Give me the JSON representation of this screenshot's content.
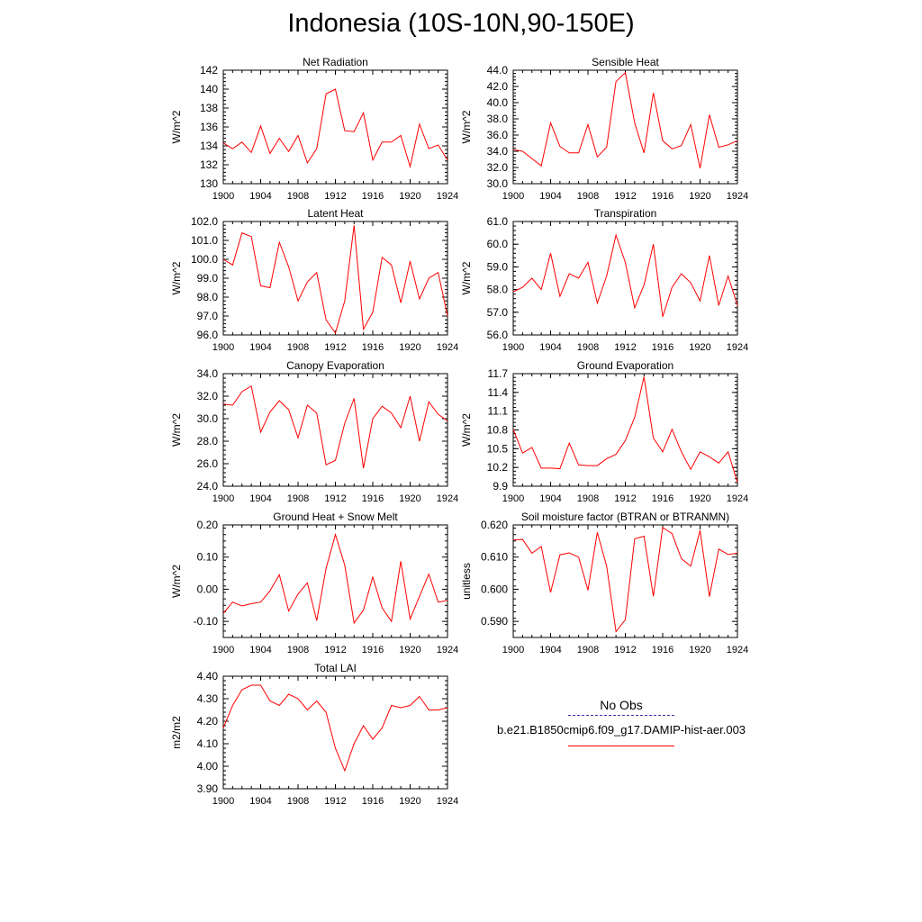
{
  "title": "Indonesia (10S-10N,90-150E)",
  "legend": {
    "obs_label": "No Obs",
    "model_label": "b.e21.B1850cmip6.f09_g17.DAMIP-hist-aer.003",
    "obs_color": "#3333aa",
    "model_color": "#ff0000"
  },
  "chart_data": [
    {
      "type": "line",
      "title": "Net Radiation",
      "ylabel": "W/m^2",
      "x": [
        1900,
        1901,
        1902,
        1903,
        1904,
        1905,
        1906,
        1907,
        1908,
        1909,
        1910,
        1911,
        1912,
        1913,
        1914,
        1915,
        1916,
        1917,
        1918,
        1919,
        1920,
        1921,
        1922,
        1923,
        1924
      ],
      "xlim": [
        1900,
        1924
      ],
      "xticks": [
        "1900",
        "1904",
        "1908",
        "1912",
        "1916",
        "1920",
        "1924"
      ],
      "ylim": [
        130,
        142
      ],
      "yticks": [
        "130",
        "132",
        "134",
        "136",
        "138",
        "140",
        "142"
      ],
      "series": [
        {
          "values": [
            134.3,
            133.7,
            134.4,
            133.3,
            136.1,
            133.2,
            134.8,
            133.4,
            135.1,
            132.2,
            133.7,
            139.5,
            140.0,
            135.6,
            135.5,
            137.5,
            132.5,
            134.4,
            134.4,
            135.1,
            131.8,
            136.3,
            133.7,
            134.1,
            132.5
          ]
        }
      ]
    },
    {
      "type": "line",
      "title": "Sensible Heat",
      "ylabel": "W/m^2",
      "x": [
        1900,
        1901,
        1902,
        1903,
        1904,
        1905,
        1906,
        1907,
        1908,
        1909,
        1910,
        1911,
        1912,
        1913,
        1914,
        1915,
        1916,
        1917,
        1918,
        1919,
        1920,
        1921,
        1922,
        1923,
        1924
      ],
      "xlim": [
        1900,
        1924
      ],
      "xticks": [
        "1900",
        "1904",
        "1908",
        "1912",
        "1916",
        "1920",
        "1924"
      ],
      "ylim": [
        30.0,
        44.0
      ],
      "yticks": [
        "30.0",
        "32.0",
        "34.0",
        "36.0",
        "38.0",
        "40.0",
        "42.0",
        "44.0"
      ],
      "series": [
        {
          "values": [
            34.2,
            34.0,
            33.1,
            32.2,
            37.5,
            34.6,
            33.8,
            33.8,
            37.3,
            33.3,
            34.5,
            42.6,
            43.7,
            37.5,
            33.8,
            41.2,
            35.3,
            34.3,
            34.7,
            37.3,
            31.9,
            38.5,
            34.5,
            34.8,
            35.3
          ]
        }
      ]
    },
    {
      "type": "line",
      "title": "Latent Heat",
      "ylabel": "W/m^2",
      "x": [
        1900,
        1901,
        1902,
        1903,
        1904,
        1905,
        1906,
        1907,
        1908,
        1909,
        1910,
        1911,
        1912,
        1913,
        1914,
        1915,
        1916,
        1917,
        1918,
        1919,
        1920,
        1921,
        1922,
        1923,
        1924
      ],
      "xlim": [
        1900,
        1924
      ],
      "xticks": [
        "1900",
        "1904",
        "1908",
        "1912",
        "1916",
        "1920",
        "1924"
      ],
      "ylim": [
        96.0,
        102.0
      ],
      "yticks": [
        "96.0",
        "97.0",
        "98.0",
        "99.0",
        "100.0",
        "101.0",
        "102.0"
      ],
      "series": [
        {
          "values": [
            100.0,
            99.7,
            101.4,
            101.2,
            98.6,
            98.5,
            100.9,
            99.6,
            97.8,
            98.8,
            99.3,
            96.8,
            96.1,
            97.8,
            101.8,
            96.3,
            97.2,
            100.1,
            99.7,
            97.7,
            99.9,
            97.9,
            99.0,
            99.3,
            97.0
          ]
        }
      ]
    },
    {
      "type": "line",
      "title": "Transpiration",
      "ylabel": "W/m^2",
      "x": [
        1900,
        1901,
        1902,
        1903,
        1904,
        1905,
        1906,
        1907,
        1908,
        1909,
        1910,
        1911,
        1912,
        1913,
        1914,
        1915,
        1916,
        1917,
        1918,
        1919,
        1920,
        1921,
        1922,
        1923,
        1924
      ],
      "xlim": [
        1900,
        1924
      ],
      "xticks": [
        "1900",
        "1904",
        "1908",
        "1912",
        "1916",
        "1920",
        "1924"
      ],
      "ylim": [
        56.0,
        61.0
      ],
      "yticks": [
        "56.0",
        "57.0",
        "58.0",
        "59.0",
        "60.0",
        "61.0"
      ],
      "series": [
        {
          "values": [
            57.9,
            58.1,
            58.5,
            58.0,
            59.6,
            57.7,
            58.7,
            58.5,
            59.2,
            57.4,
            58.6,
            60.4,
            59.2,
            57.2,
            58.2,
            60.0,
            56.8,
            58.1,
            58.7,
            58.3,
            57.5,
            59.5,
            57.3,
            58.6,
            57.3
          ]
        }
      ]
    },
    {
      "type": "line",
      "title": "Canopy Evaporation",
      "ylabel": "W/m^2",
      "x": [
        1900,
        1901,
        1902,
        1903,
        1904,
        1905,
        1906,
        1907,
        1908,
        1909,
        1910,
        1911,
        1912,
        1913,
        1914,
        1915,
        1916,
        1917,
        1918,
        1919,
        1920,
        1921,
        1922,
        1923,
        1924
      ],
      "xlim": [
        1900,
        1924
      ],
      "xticks": [
        "1900",
        "1904",
        "1908",
        "1912",
        "1916",
        "1920",
        "1924"
      ],
      "ylim": [
        24.0,
        34.0
      ],
      "yticks": [
        "24.0",
        "26.0",
        "28.0",
        "30.0",
        "32.0",
        "34.0"
      ],
      "series": [
        {
          "values": [
            31.3,
            31.2,
            32.4,
            32.9,
            28.8,
            30.6,
            31.6,
            30.8,
            28.3,
            31.2,
            30.5,
            25.9,
            26.3,
            29.6,
            31.8,
            25.6,
            30.0,
            31.1,
            30.5,
            29.2,
            32.0,
            28.0,
            31.5,
            30.4,
            29.8
          ]
        }
      ]
    },
    {
      "type": "line",
      "title": "Ground Evaporation",
      "ylabel": "W/m^2",
      "x": [
        1900,
        1901,
        1902,
        1903,
        1904,
        1905,
        1906,
        1907,
        1908,
        1909,
        1910,
        1911,
        1912,
        1913,
        1914,
        1915,
        1916,
        1917,
        1918,
        1919,
        1920,
        1921,
        1922,
        1923,
        1924
      ],
      "xlim": [
        1900,
        1924
      ],
      "xticks": [
        "1900",
        "1904",
        "1908",
        "1912",
        "1916",
        "1920",
        "1924"
      ],
      "ylim": [
        9.9,
        11.7
      ],
      "yticks": [
        "9.9",
        "10.2",
        "10.5",
        "10.8",
        "11.1",
        "11.4",
        "11.7"
      ],
      "series": [
        {
          "values": [
            10.81,
            10.43,
            10.52,
            10.19,
            10.19,
            10.18,
            10.59,
            10.24,
            10.23,
            10.23,
            10.34,
            10.41,
            10.63,
            11.0,
            11.65,
            10.67,
            10.45,
            10.81,
            10.45,
            10.17,
            10.45,
            10.37,
            10.27,
            10.45,
            9.96
          ]
        }
      ]
    },
    {
      "type": "line",
      "title": "Ground Heat + Snow Melt",
      "ylabel": "W/m^2",
      "x": [
        1900,
        1901,
        1902,
        1903,
        1904,
        1905,
        1906,
        1907,
        1908,
        1909,
        1910,
        1911,
        1912,
        1913,
        1914,
        1915,
        1916,
        1917,
        1918,
        1919,
        1920,
        1921,
        1922,
        1923,
        1924
      ],
      "xlim": [
        1900,
        1924
      ],
      "xticks": [
        "1900",
        "1904",
        "1908",
        "1912",
        "1916",
        "1920",
        "1924"
      ],
      "ylim": [
        -0.15,
        0.2
      ],
      "yticks": [
        "-0.10",
        "0.00",
        "0.10",
        "0.20"
      ],
      "yticks_values": [
        -0.1,
        0.0,
        0.1,
        0.2
      ],
      "series": [
        {
          "values": [
            -0.075,
            -0.04,
            -0.052,
            -0.045,
            -0.04,
            -0.005,
            0.045,
            -0.068,
            -0.015,
            0.02,
            -0.098,
            0.065,
            0.17,
            0.075,
            -0.105,
            -0.065,
            0.038,
            -0.058,
            -0.1,
            0.087,
            -0.093,
            -0.022,
            0.047,
            -0.04,
            -0.035
          ]
        }
      ]
    },
    {
      "type": "line",
      "title": "Soil moisture factor (BTRAN or BTRANMN)",
      "ylabel": "unitless",
      "x": [
        1900,
        1901,
        1902,
        1903,
        1904,
        1905,
        1906,
        1907,
        1908,
        1909,
        1910,
        1911,
        1912,
        1913,
        1914,
        1915,
        1916,
        1917,
        1918,
        1919,
        1920,
        1921,
        1922,
        1923,
        1924
      ],
      "xlim": [
        1900,
        1924
      ],
      "xticks": [
        "1900",
        "1904",
        "1908",
        "1912",
        "1916",
        "1920",
        "1924"
      ],
      "ylim": [
        0.585,
        0.62
      ],
      "yticks": [
        "0.590",
        "0.600",
        "0.610",
        "0.620"
      ],
      "yticks_values": [
        0.59,
        0.6,
        0.61,
        0.62
      ],
      "series": [
        {
          "values": [
            0.6153,
            0.6155,
            0.6112,
            0.6133,
            0.599,
            0.6107,
            0.6113,
            0.61,
            0.5997,
            0.6177,
            0.6072,
            0.5868,
            0.5905,
            0.6157,
            0.6165,
            0.5978,
            0.6192,
            0.6173,
            0.6095,
            0.6072,
            0.6183,
            0.5977,
            0.6125,
            0.6108,
            0.6112
          ]
        }
      ]
    },
    {
      "type": "line",
      "title": "Total LAI",
      "ylabel": "m2/m2",
      "x": [
        1900,
        1901,
        1902,
        1903,
        1904,
        1905,
        1906,
        1907,
        1908,
        1909,
        1910,
        1911,
        1912,
        1913,
        1914,
        1915,
        1916,
        1917,
        1918,
        1919,
        1920,
        1921,
        1922,
        1923,
        1924
      ],
      "xlim": [
        1900,
        1924
      ],
      "xticks": [
        "1900",
        "1904",
        "1908",
        "1912",
        "1916",
        "1920",
        "1924"
      ],
      "ylim": [
        3.9,
        4.4
      ],
      "yticks": [
        "3.90",
        "4.00",
        "4.10",
        "4.20",
        "4.30",
        "4.40"
      ],
      "series": [
        {
          "values": [
            4.17,
            4.27,
            4.34,
            4.36,
            4.36,
            4.29,
            4.27,
            4.32,
            4.3,
            4.25,
            4.29,
            4.24,
            4.08,
            3.98,
            4.1,
            4.18,
            4.12,
            4.17,
            4.27,
            4.26,
            4.27,
            4.31,
            4.25,
            4.25,
            4.26
          ]
        }
      ]
    }
  ]
}
